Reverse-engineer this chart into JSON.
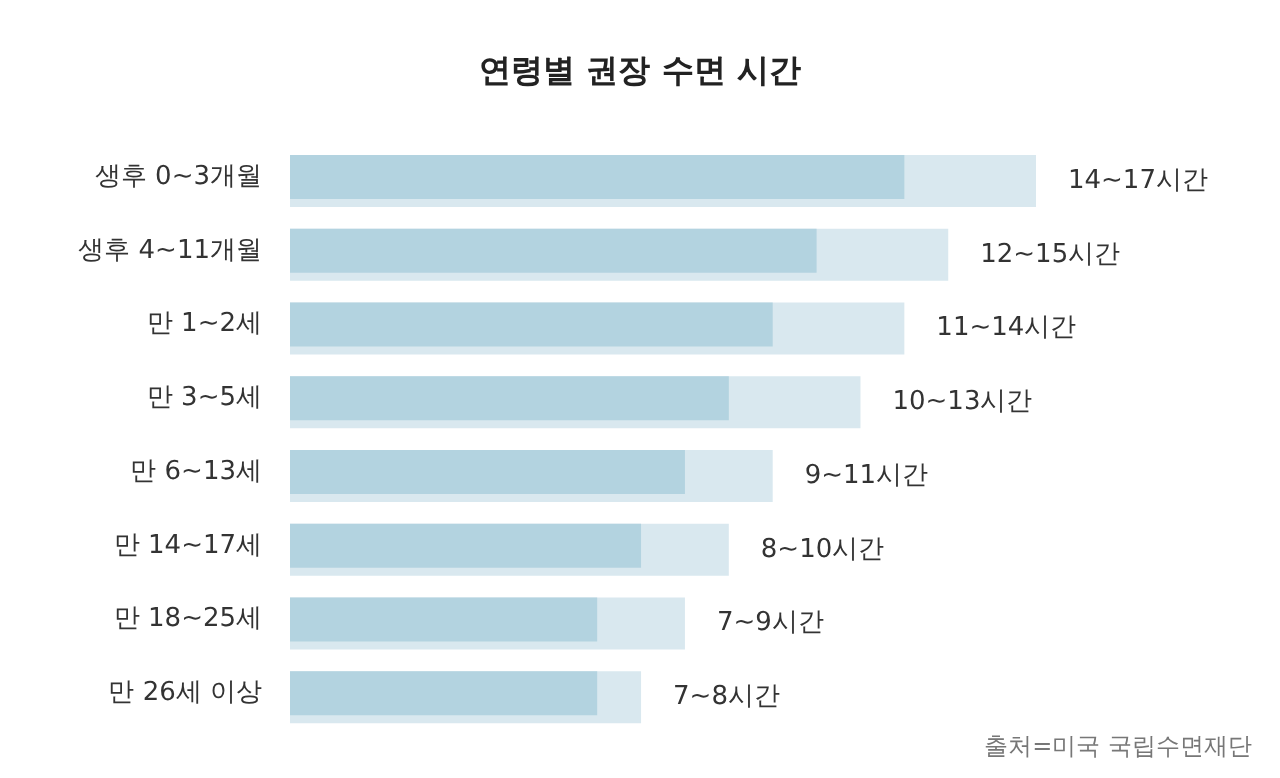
{
  "chart_data": {
    "type": "bar",
    "title": "연령별 권장 수면 시간",
    "orientation": "horizontal",
    "categories": [
      "생후 0~3개월",
      "생후 4~11개월",
      "만 1~2세",
      "만 3~5세",
      "만 6~13세",
      "만 14~17세",
      "만 18~25세",
      "만 26세 이상"
    ],
    "series": [
      {
        "color": "#d9e8ef",
        "values": [
          17,
          15,
          14,
          13,
          11,
          10,
          9,
          8
        ],
        "value_labels": [
          "14~17시간",
          "12~15시간",
          "11~14시간",
          "10~13시간",
          "9~11시간",
          "8~10시간",
          "7~9시간",
          "7~8시간"
        ]
      },
      {
        "color": "#b3d3e0",
        "values": [
          14,
          12,
          11,
          10,
          9,
          8,
          7,
          7
        ]
      }
    ],
    "tick_labels": "y",
    "annotations": [
      "출처=미국 국립수면재단"
    ]
  }
}
